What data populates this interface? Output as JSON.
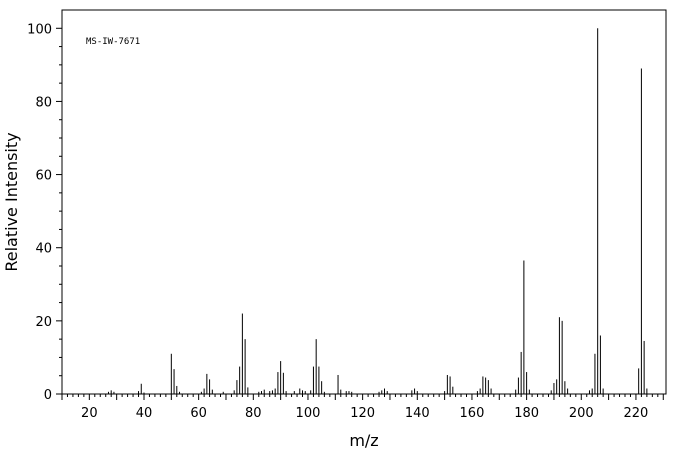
{
  "chart_data": {
    "type": "bar",
    "annotation": "MS-IW-7671",
    "xlabel": "m/z",
    "ylabel": "Relative Intensity",
    "xlim": [
      10,
      231
    ],
    "ylim": [
      0,
      105
    ],
    "x_ticks": [
      20,
      40,
      60,
      80,
      100,
      120,
      140,
      160,
      180,
      200,
      220
    ],
    "y_ticks": [
      0,
      20,
      40,
      60,
      80,
      100
    ],
    "grid": false,
    "peaks": [
      {
        "mz": 27,
        "intensity": 0.6
      },
      {
        "mz": 28,
        "intensity": 1.0
      },
      {
        "mz": 29,
        "intensity": 0.6
      },
      {
        "mz": 38,
        "intensity": 0.8
      },
      {
        "mz": 39,
        "intensity": 2.8
      },
      {
        "mz": 40,
        "intensity": 0.4
      },
      {
        "mz": 50,
        "intensity": 11.0
      },
      {
        "mz": 51,
        "intensity": 6.8
      },
      {
        "mz": 52,
        "intensity": 2.2
      },
      {
        "mz": 53,
        "intensity": 0.6
      },
      {
        "mz": 61,
        "intensity": 0.6
      },
      {
        "mz": 62,
        "intensity": 1.5
      },
      {
        "mz": 63,
        "intensity": 5.5
      },
      {
        "mz": 64,
        "intensity": 4.0
      },
      {
        "mz": 65,
        "intensity": 1.2
      },
      {
        "mz": 69,
        "intensity": 0.6
      },
      {
        "mz": 73,
        "intensity": 1.0
      },
      {
        "mz": 74,
        "intensity": 3.8
      },
      {
        "mz": 75,
        "intensity": 7.5
      },
      {
        "mz": 76,
        "intensity": 22.0
      },
      {
        "mz": 77,
        "intensity": 15.0
      },
      {
        "mz": 78,
        "intensity": 1.8
      },
      {
        "mz": 82,
        "intensity": 0.6
      },
      {
        "mz": 83,
        "intensity": 0.8
      },
      {
        "mz": 84,
        "intensity": 1.2
      },
      {
        "mz": 86,
        "intensity": 0.8
      },
      {
        "mz": 87,
        "intensity": 1.0
      },
      {
        "mz": 88,
        "intensity": 1.5
      },
      {
        "mz": 89,
        "intensity": 6.0
      },
      {
        "mz": 90,
        "intensity": 9.0
      },
      {
        "mz": 91,
        "intensity": 5.8
      },
      {
        "mz": 92,
        "intensity": 0.8
      },
      {
        "mz": 95,
        "intensity": 0.8
      },
      {
        "mz": 97,
        "intensity": 1.5
      },
      {
        "mz": 98,
        "intensity": 1.0
      },
      {
        "mz": 99,
        "intensity": 0.8
      },
      {
        "mz": 101,
        "intensity": 1.0
      },
      {
        "mz": 102,
        "intensity": 7.5
      },
      {
        "mz": 103,
        "intensity": 15.0
      },
      {
        "mz": 104,
        "intensity": 7.5
      },
      {
        "mz": 105,
        "intensity": 3.5
      },
      {
        "mz": 106,
        "intensity": 0.6
      },
      {
        "mz": 111,
        "intensity": 5.2
      },
      {
        "mz": 112,
        "intensity": 1.2
      },
      {
        "mz": 114,
        "intensity": 0.8
      },
      {
        "mz": 115,
        "intensity": 0.8
      },
      {
        "mz": 116,
        "intensity": 0.6
      },
      {
        "mz": 126,
        "intensity": 0.6
      },
      {
        "mz": 127,
        "intensity": 1.0
      },
      {
        "mz": 128,
        "intensity": 1.5
      },
      {
        "mz": 129,
        "intensity": 0.8
      },
      {
        "mz": 138,
        "intensity": 1.0
      },
      {
        "mz": 139,
        "intensity": 1.5
      },
      {
        "mz": 140,
        "intensity": 0.8
      },
      {
        "mz": 150,
        "intensity": 0.8
      },
      {
        "mz": 151,
        "intensity": 5.2
      },
      {
        "mz": 152,
        "intensity": 4.8
      },
      {
        "mz": 153,
        "intensity": 2.0
      },
      {
        "mz": 162,
        "intensity": 0.8
      },
      {
        "mz": 163,
        "intensity": 1.5
      },
      {
        "mz": 164,
        "intensity": 4.8
      },
      {
        "mz": 165,
        "intensity": 4.5
      },
      {
        "mz": 166,
        "intensity": 3.8
      },
      {
        "mz": 167,
        "intensity": 1.5
      },
      {
        "mz": 176,
        "intensity": 1.2
      },
      {
        "mz": 177,
        "intensity": 4.5
      },
      {
        "mz": 178,
        "intensity": 11.5
      },
      {
        "mz": 179,
        "intensity": 36.5
      },
      {
        "mz": 180,
        "intensity": 6.0
      },
      {
        "mz": 181,
        "intensity": 1.2
      },
      {
        "mz": 189,
        "intensity": 1.0
      },
      {
        "mz": 190,
        "intensity": 3.0
      },
      {
        "mz": 191,
        "intensity": 4.0
      },
      {
        "mz": 192,
        "intensity": 21.0
      },
      {
        "mz": 193,
        "intensity": 20.0
      },
      {
        "mz": 194,
        "intensity": 3.5
      },
      {
        "mz": 195,
        "intensity": 1.5
      },
      {
        "mz": 203,
        "intensity": 1.0
      },
      {
        "mz": 204,
        "intensity": 1.5
      },
      {
        "mz": 205,
        "intensity": 11.0
      },
      {
        "mz": 206,
        "intensity": 100.0
      },
      {
        "mz": 207,
        "intensity": 16.0
      },
      {
        "mz": 208,
        "intensity": 1.5
      },
      {
        "mz": 221,
        "intensity": 7.0
      },
      {
        "mz": 222,
        "intensity": 89.0
      },
      {
        "mz": 223,
        "intensity": 14.5
      },
      {
        "mz": 224,
        "intensity": 1.5
      }
    ]
  }
}
